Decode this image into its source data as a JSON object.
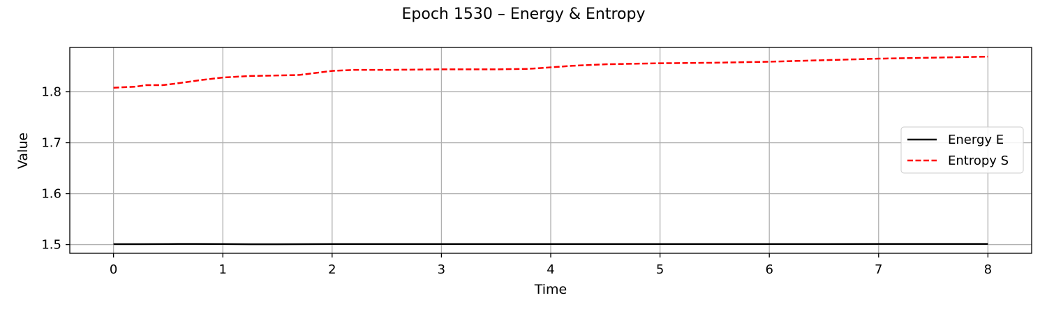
{
  "chart_data": {
    "type": "line",
    "title": "Epoch 1530 – Energy & Entropy",
    "xlabel": "Time",
    "ylabel": "Value",
    "xlim": [
      -0.4,
      8.4
    ],
    "ylim": [
      1.483,
      1.887
    ],
    "xticks": [
      0,
      1,
      2,
      3,
      4,
      5,
      6,
      7,
      8
    ],
    "yticks": [
      1.5,
      1.6,
      1.7,
      1.8
    ],
    "grid": true,
    "legend_position": "center-right",
    "series": [
      {
        "name": "Energy E",
        "color": "#000000",
        "style": "solid",
        "x": [
          0,
          0.25,
          0.5,
          0.75,
          1.0,
          1.25,
          1.5,
          1.75,
          2.0,
          2.5,
          3.0,
          3.5,
          4.0,
          4.5,
          5.0,
          5.5,
          6.0,
          6.5,
          7.0,
          7.5,
          8.0
        ],
        "y": [
          1.501,
          1.501,
          1.5012,
          1.5013,
          1.5012,
          1.5008,
          1.5008,
          1.501,
          1.5011,
          1.5012,
          1.5012,
          1.5012,
          1.5012,
          1.5012,
          1.5012,
          1.5012,
          1.5012,
          1.5012,
          1.5013,
          1.5013,
          1.5013
        ]
      },
      {
        "name": "Entropy S",
        "color": "#ff0000",
        "style": "dashed",
        "x": [
          0,
          0.2,
          0.3,
          0.45,
          0.6,
          0.8,
          1.0,
          1.25,
          1.5,
          1.7,
          1.85,
          2.0,
          2.2,
          2.5,
          3.0,
          3.5,
          3.8,
          4.0,
          4.2,
          4.5,
          5.0,
          5.5,
          6.0,
          6.5,
          7.0,
          7.5,
          8.0
        ],
        "y": [
          1.808,
          1.81,
          1.813,
          1.813,
          1.817,
          1.823,
          1.828,
          1.831,
          1.832,
          1.833,
          1.837,
          1.841,
          1.843,
          1.843,
          1.844,
          1.844,
          1.845,
          1.848,
          1.851,
          1.854,
          1.856,
          1.857,
          1.859,
          1.862,
          1.865,
          1.867,
          1.869
        ]
      }
    ]
  }
}
